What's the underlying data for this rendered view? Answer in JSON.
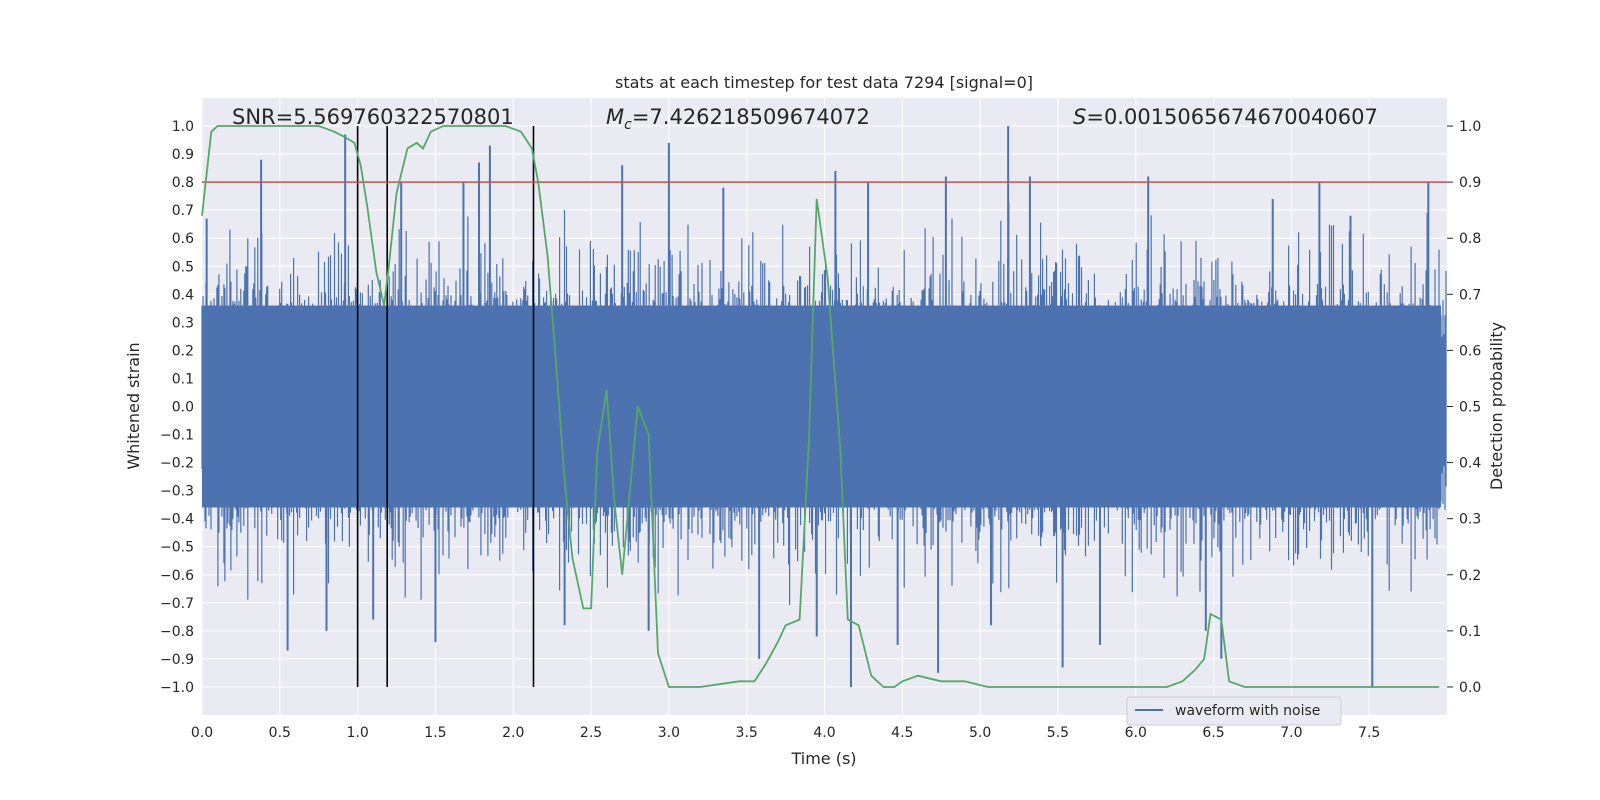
{
  "chart_data": {
    "type": "line",
    "title": "stats at each timestep for test data 7294 [signal=0]",
    "xlabel": "Time (s)",
    "ylabel_left": "Whitened strain",
    "ylabel_right": "Detection probability",
    "xlim": [
      0.0,
      8.0
    ],
    "ylim_left": [
      -1.1,
      1.1
    ],
    "ylim_right": [
      -0.05,
      1.05
    ],
    "x_ticks": [
      0.0,
      0.5,
      1.0,
      1.5,
      2.0,
      2.5,
      3.0,
      3.5,
      4.0,
      4.5,
      5.0,
      5.5,
      6.0,
      6.5,
      7.0,
      7.5
    ],
    "x_tick_labels": [
      "0.0",
      "0.5",
      "1.0",
      "1.5",
      "2.0",
      "2.5",
      "3.0",
      "3.5",
      "4.0",
      "4.5",
      "5.0",
      "5.5",
      "6.0",
      "6.5",
      "7.0",
      "7.5"
    ],
    "y_left_ticks": [
      1.0,
      0.9,
      0.8,
      0.7,
      0.6,
      0.5,
      0.4,
      0.3,
      0.2,
      0.1,
      0.0,
      -0.1,
      -0.2,
      -0.3,
      -0.4,
      -0.5,
      -0.6,
      -0.7,
      -0.8,
      -0.9,
      -1.0
    ],
    "y_left_tick_labels": [
      "1.0",
      "0.9",
      "0.8",
      "0.7",
      "0.6",
      "0.5",
      "0.4",
      "0.3",
      "0.2",
      "0.1",
      "0.0",
      "−0.1",
      "−0.2",
      "−0.3",
      "−0.4",
      "−0.5",
      "−0.6",
      "−0.7",
      "−0.8",
      "−0.9",
      "−1.0"
    ],
    "y_right_ticks": [
      1.0,
      0.9,
      0.8,
      0.7,
      0.6,
      0.5,
      0.4,
      0.3,
      0.2,
      0.1,
      0.0
    ],
    "y_right_tick_labels": [
      "1.0",
      "0.9",
      "0.8",
      "0.7",
      "0.6",
      "0.5",
      "0.4",
      "0.3",
      "0.2",
      "0.1",
      "0.0"
    ],
    "annotations": {
      "snr": "SNR=5.569760322570801",
      "mc_symbol": "M",
      "mc_sub": "c",
      "mc_value": "=7.426218509674072",
      "s_symbol": "S",
      "s_value": "=0.0015065674670040607"
    },
    "threshold_line": {
      "axis": "right",
      "y": 0.9,
      "color": "#c44e52"
    },
    "vertical_markers": {
      "x": [
        1.0,
        1.19,
        2.13
      ],
      "y_range": [
        -1.0,
        1.0
      ],
      "color": "#000000"
    },
    "waveform": {
      "name": "waveform with noise",
      "color": "#4c72b0",
      "description_range": "noise amplitude mostly within [-0.45, 0.45] with spikes",
      "spikes": [
        [
          0.03,
          0.67
        ],
        [
          0.38,
          0.88
        ],
        [
          0.55,
          -0.87
        ],
        [
          0.8,
          -0.8
        ],
        [
          0.92,
          0.97
        ],
        [
          1.1,
          -0.76
        ],
        [
          1.28,
          0.8
        ],
        [
          1.5,
          -0.84
        ],
        [
          1.68,
          0.8
        ],
        [
          1.78,
          0.87
        ],
        [
          1.85,
          0.93
        ],
        [
          2.33,
          -0.78
        ],
        [
          2.7,
          0.86
        ],
        [
          2.87,
          -0.8
        ],
        [
          3.0,
          0.94
        ],
        [
          3.35,
          0.78
        ],
        [
          3.58,
          -0.9
        ],
        [
          3.95,
          -0.82
        ],
        [
          4.07,
          0.84
        ],
        [
          4.17,
          -1.0
        ],
        [
          4.28,
          0.8
        ],
        [
          4.47,
          -0.85
        ],
        [
          4.73,
          -0.95
        ],
        [
          4.78,
          0.82
        ],
        [
          5.07,
          -0.78
        ],
        [
          5.18,
          1.0
        ],
        [
          5.32,
          0.82
        ],
        [
          5.53,
          -0.93
        ],
        [
          5.77,
          -0.85
        ],
        [
          6.08,
          0.82
        ],
        [
          6.45,
          -0.8
        ],
        [
          6.55,
          -0.9
        ],
        [
          6.88,
          0.74
        ],
        [
          7.18,
          0.8
        ],
        [
          7.38,
          0.68
        ],
        [
          7.52,
          -1.0
        ],
        [
          7.88,
          0.8
        ]
      ]
    },
    "detection_probability": {
      "name": "detection probability",
      "color": "#55a868",
      "x": [
        0.0,
        0.06,
        0.1,
        0.2,
        0.3,
        0.5,
        0.75,
        0.85,
        0.92,
        0.98,
        1.02,
        1.06,
        1.12,
        1.17,
        1.2,
        1.25,
        1.32,
        1.38,
        1.42,
        1.47,
        1.55,
        1.7,
        1.85,
        1.95,
        2.05,
        2.12,
        2.16,
        2.22,
        2.28,
        2.33,
        2.38,
        2.45,
        2.5,
        2.54,
        2.6,
        2.65,
        2.7,
        2.74,
        2.8,
        2.87,
        2.93,
        3.0,
        3.2,
        3.45,
        3.55,
        3.62,
        3.7,
        3.75,
        3.84,
        3.9,
        3.95,
        4.02,
        4.1,
        4.15,
        4.22,
        4.3,
        4.38,
        4.45,
        4.5,
        4.6,
        4.75,
        4.9,
        5.05,
        5.3,
        5.6,
        6.1,
        6.2,
        6.3,
        6.38,
        6.44,
        6.48,
        6.55,
        6.6,
        6.7,
        7.0,
        7.3,
        7.6,
        7.95
      ],
      "y": [
        0.84,
        0.99,
        1.0,
        1.0,
        1.0,
        1.0,
        1.0,
        0.99,
        0.98,
        0.97,
        0.93,
        0.86,
        0.74,
        0.68,
        0.75,
        0.88,
        0.96,
        0.97,
        0.96,
        0.99,
        1.0,
        1.0,
        1.0,
        1.0,
        0.99,
        0.96,
        0.9,
        0.77,
        0.56,
        0.37,
        0.23,
        0.14,
        0.14,
        0.42,
        0.53,
        0.33,
        0.2,
        0.32,
        0.5,
        0.45,
        0.06,
        0.0,
        0.0,
        0.01,
        0.01,
        0.04,
        0.08,
        0.11,
        0.12,
        0.44,
        0.87,
        0.73,
        0.43,
        0.12,
        0.11,
        0.02,
        0.0,
        0.0,
        0.01,
        0.02,
        0.01,
        0.01,
        0.0,
        0.0,
        0.0,
        0.0,
        0.0,
        0.01,
        0.03,
        0.05,
        0.13,
        0.12,
        0.01,
        0.0,
        0.0,
        0.0,
        0.0,
        0.0
      ]
    },
    "legend": {
      "placement": "lower-right",
      "entries": [
        "waveform with noise"
      ]
    }
  }
}
